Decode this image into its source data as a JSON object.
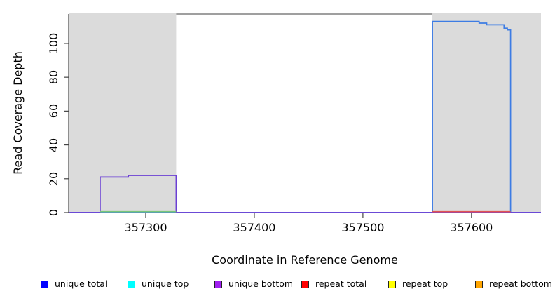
{
  "chart_data": {
    "type": "line",
    "step": true,
    "title": "",
    "xlabel": "Coordinate in Reference Genome",
    "ylabel": "Read Coverage Depth",
    "xlim": [
      357229,
      357664
    ],
    "ylim": [
      0,
      117.4
    ],
    "x_ticks": [
      357300,
      357400,
      357500,
      357600
    ],
    "y_ticks": [
      0,
      20,
      40,
      60,
      80,
      100
    ],
    "grid": false,
    "background_shaded_regions": [
      {
        "x0": 357229,
        "x1": 357328,
        "color": "#DBDBDB"
      },
      {
        "x0": 357564,
        "x1": 357664,
        "color": "#DBDBDB"
      }
    ],
    "series": [
      {
        "name": "unique total",
        "color": "#3D7CE4",
        "points": [
          [
            357229,
            0
          ],
          [
            357564,
            0
          ],
          [
            357564,
            113
          ],
          [
            357607,
            113
          ],
          [
            357607,
            112
          ],
          [
            357614,
            112
          ],
          [
            357614,
            111
          ],
          [
            357630,
            111
          ],
          [
            357630,
            109
          ],
          [
            357633,
            109
          ],
          [
            357633,
            108
          ],
          [
            357636,
            108
          ],
          [
            357636,
            0
          ],
          [
            357664,
            0
          ]
        ]
      },
      {
        "name": "unique bottom",
        "color": "#6B3FD4",
        "points": [
          [
            357229,
            0
          ],
          [
            357258,
            0
          ],
          [
            357258,
            21
          ],
          [
            357284,
            21
          ],
          [
            357284,
            22
          ],
          [
            357328,
            22
          ],
          [
            357328,
            0
          ],
          [
            357664,
            0
          ]
        ]
      },
      {
        "name": "zero-segment-green",
        "color": "#79C679",
        "zero_overlay": true,
        "points": [
          [
            357258,
            0
          ],
          [
            357328,
            0
          ]
        ]
      },
      {
        "name": "zero-segment-red",
        "color": "#E25252",
        "zero_overlay": true,
        "points": [
          [
            357564,
            0
          ],
          [
            357636,
            0
          ]
        ]
      }
    ],
    "legend": {
      "position": "bottom",
      "items": [
        {
          "label": "unique total",
          "color": "#0000FF"
        },
        {
          "label": "unique top",
          "color": "#00FFFF"
        },
        {
          "label": "unique bottom",
          "color": "#A020F0"
        },
        {
          "label": "repeat total",
          "color": "#FF0000"
        },
        {
          "label": "repeat top",
          "color": "#FFFF00"
        },
        {
          "label": "repeat bottom",
          "color": "#FFA500"
        }
      ]
    }
  }
}
